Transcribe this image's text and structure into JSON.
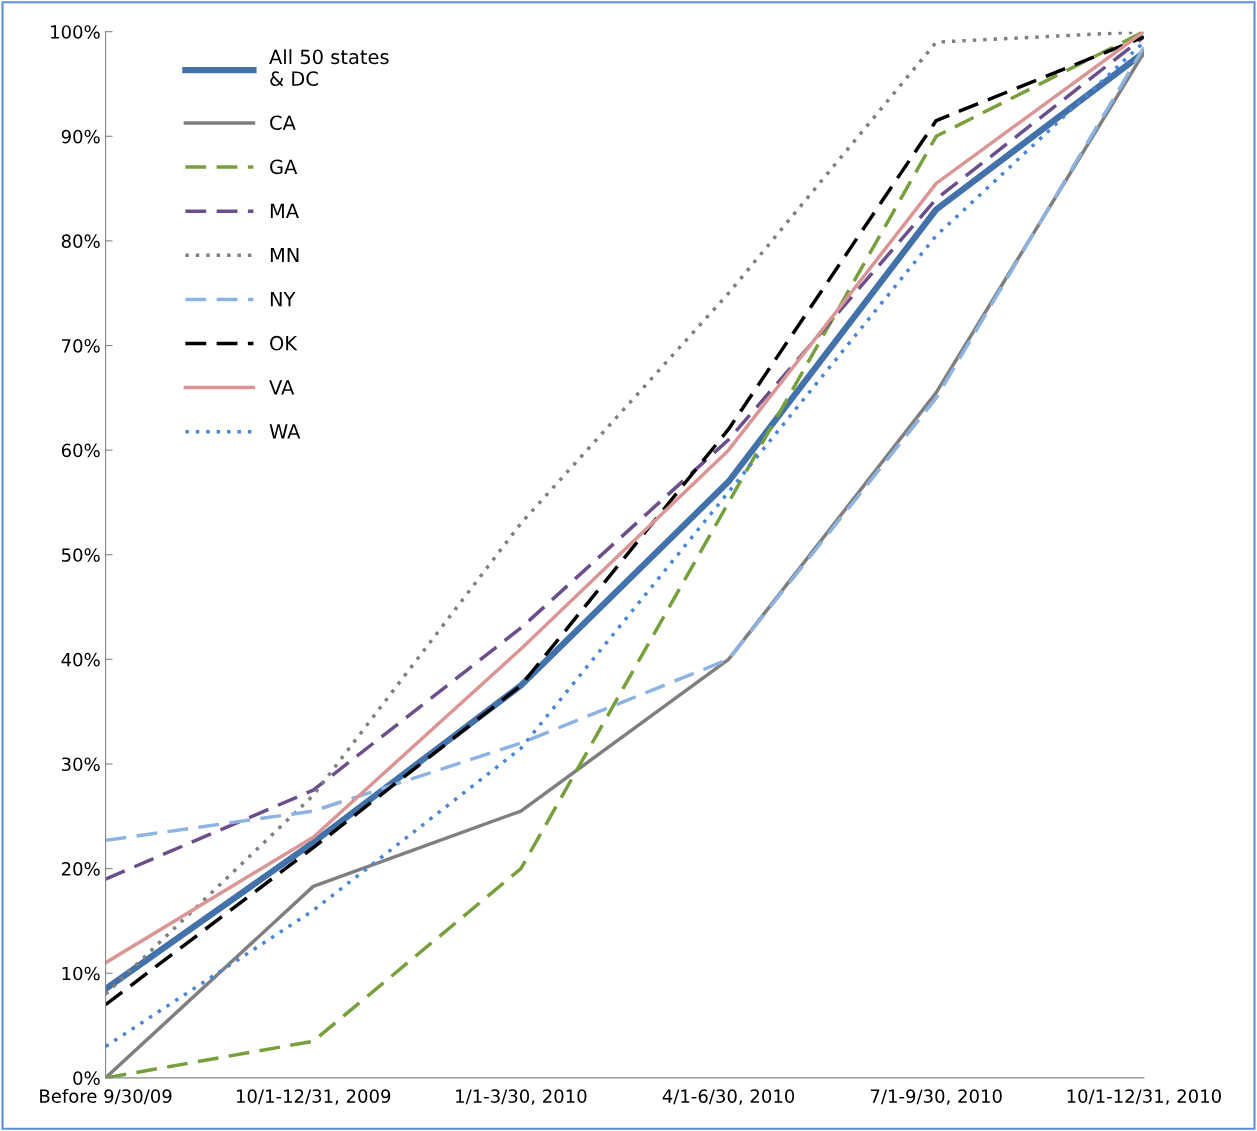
{
  "chart_data": {
    "type": "line",
    "categories": [
      "Before 9/30/09",
      "10/1-12/31, 2009",
      "1/1-3/30, 2010",
      "4/1-6/30, 2010",
      "7/1-9/30, 2010",
      "10/1-12/31, 2010"
    ],
    "ylim": [
      0,
      100
    ],
    "yticks": [
      {
        "value": 0,
        "label": "0%"
      },
      {
        "value": 10,
        "label": "10%"
      },
      {
        "value": 20,
        "label": "20%"
      },
      {
        "value": 30,
        "label": "30%"
      },
      {
        "value": 40,
        "label": "40%"
      },
      {
        "value": 50,
        "label": "50%"
      },
      {
        "value": 60,
        "label": "60%"
      },
      {
        "value": 70,
        "label": "70%"
      },
      {
        "value": 80,
        "label": "80%"
      },
      {
        "value": 90,
        "label": "90%"
      },
      {
        "value": 100,
        "label": "100%"
      }
    ],
    "grid": false,
    "legend": "top left",
    "marker": "none",
    "series": [
      {
        "name": "All 50 states\n& DC",
        "color": "#4372aa",
        "line_style": "solid",
        "values": [
          8.5,
          22.5,
          37.5,
          57,
          83,
          98
        ]
      },
      {
        "name": "CA",
        "color": "#7f7f7f",
        "line_style": "solid",
        "values": [
          0,
          18.3,
          25.5,
          40,
          65.5,
          98
        ]
      },
      {
        "name": "GA",
        "color": "#77a03c",
        "line_style": "dashed",
        "values": [
          0,
          3.5,
          20,
          55,
          90,
          100
        ]
      },
      {
        "name": "MA",
        "color": "#6a4f8c",
        "line_style": "dashed",
        "values": [
          19,
          27.5,
          43,
          61,
          84,
          99.5
        ]
      },
      {
        "name": "MN",
        "color": "#808080",
        "line_style": "dotted",
        "values": [
          8,
          27,
          53,
          75,
          99,
          100
        ]
      },
      {
        "name": "NY",
        "color": "#8db3e2",
        "line_style": "dashed",
        "values": [
          22.7,
          25.5,
          32,
          40,
          65,
          98.5
        ]
      },
      {
        "name": "OK",
        "color": "#000000",
        "line_style": "dashed",
        "values": [
          7,
          22,
          37.5,
          62,
          91.5,
          99.5
        ]
      },
      {
        "name": "VA",
        "color": "#d99694",
        "line_style": "solid",
        "values": [
          11,
          23,
          41,
          60,
          85.5,
          100
        ]
      },
      {
        "name": "WA",
        "color": "#4a86d8",
        "line_style": "dotted",
        "values": [
          3,
          16,
          31.5,
          56,
          80.5,
          99
        ]
      }
    ]
  }
}
